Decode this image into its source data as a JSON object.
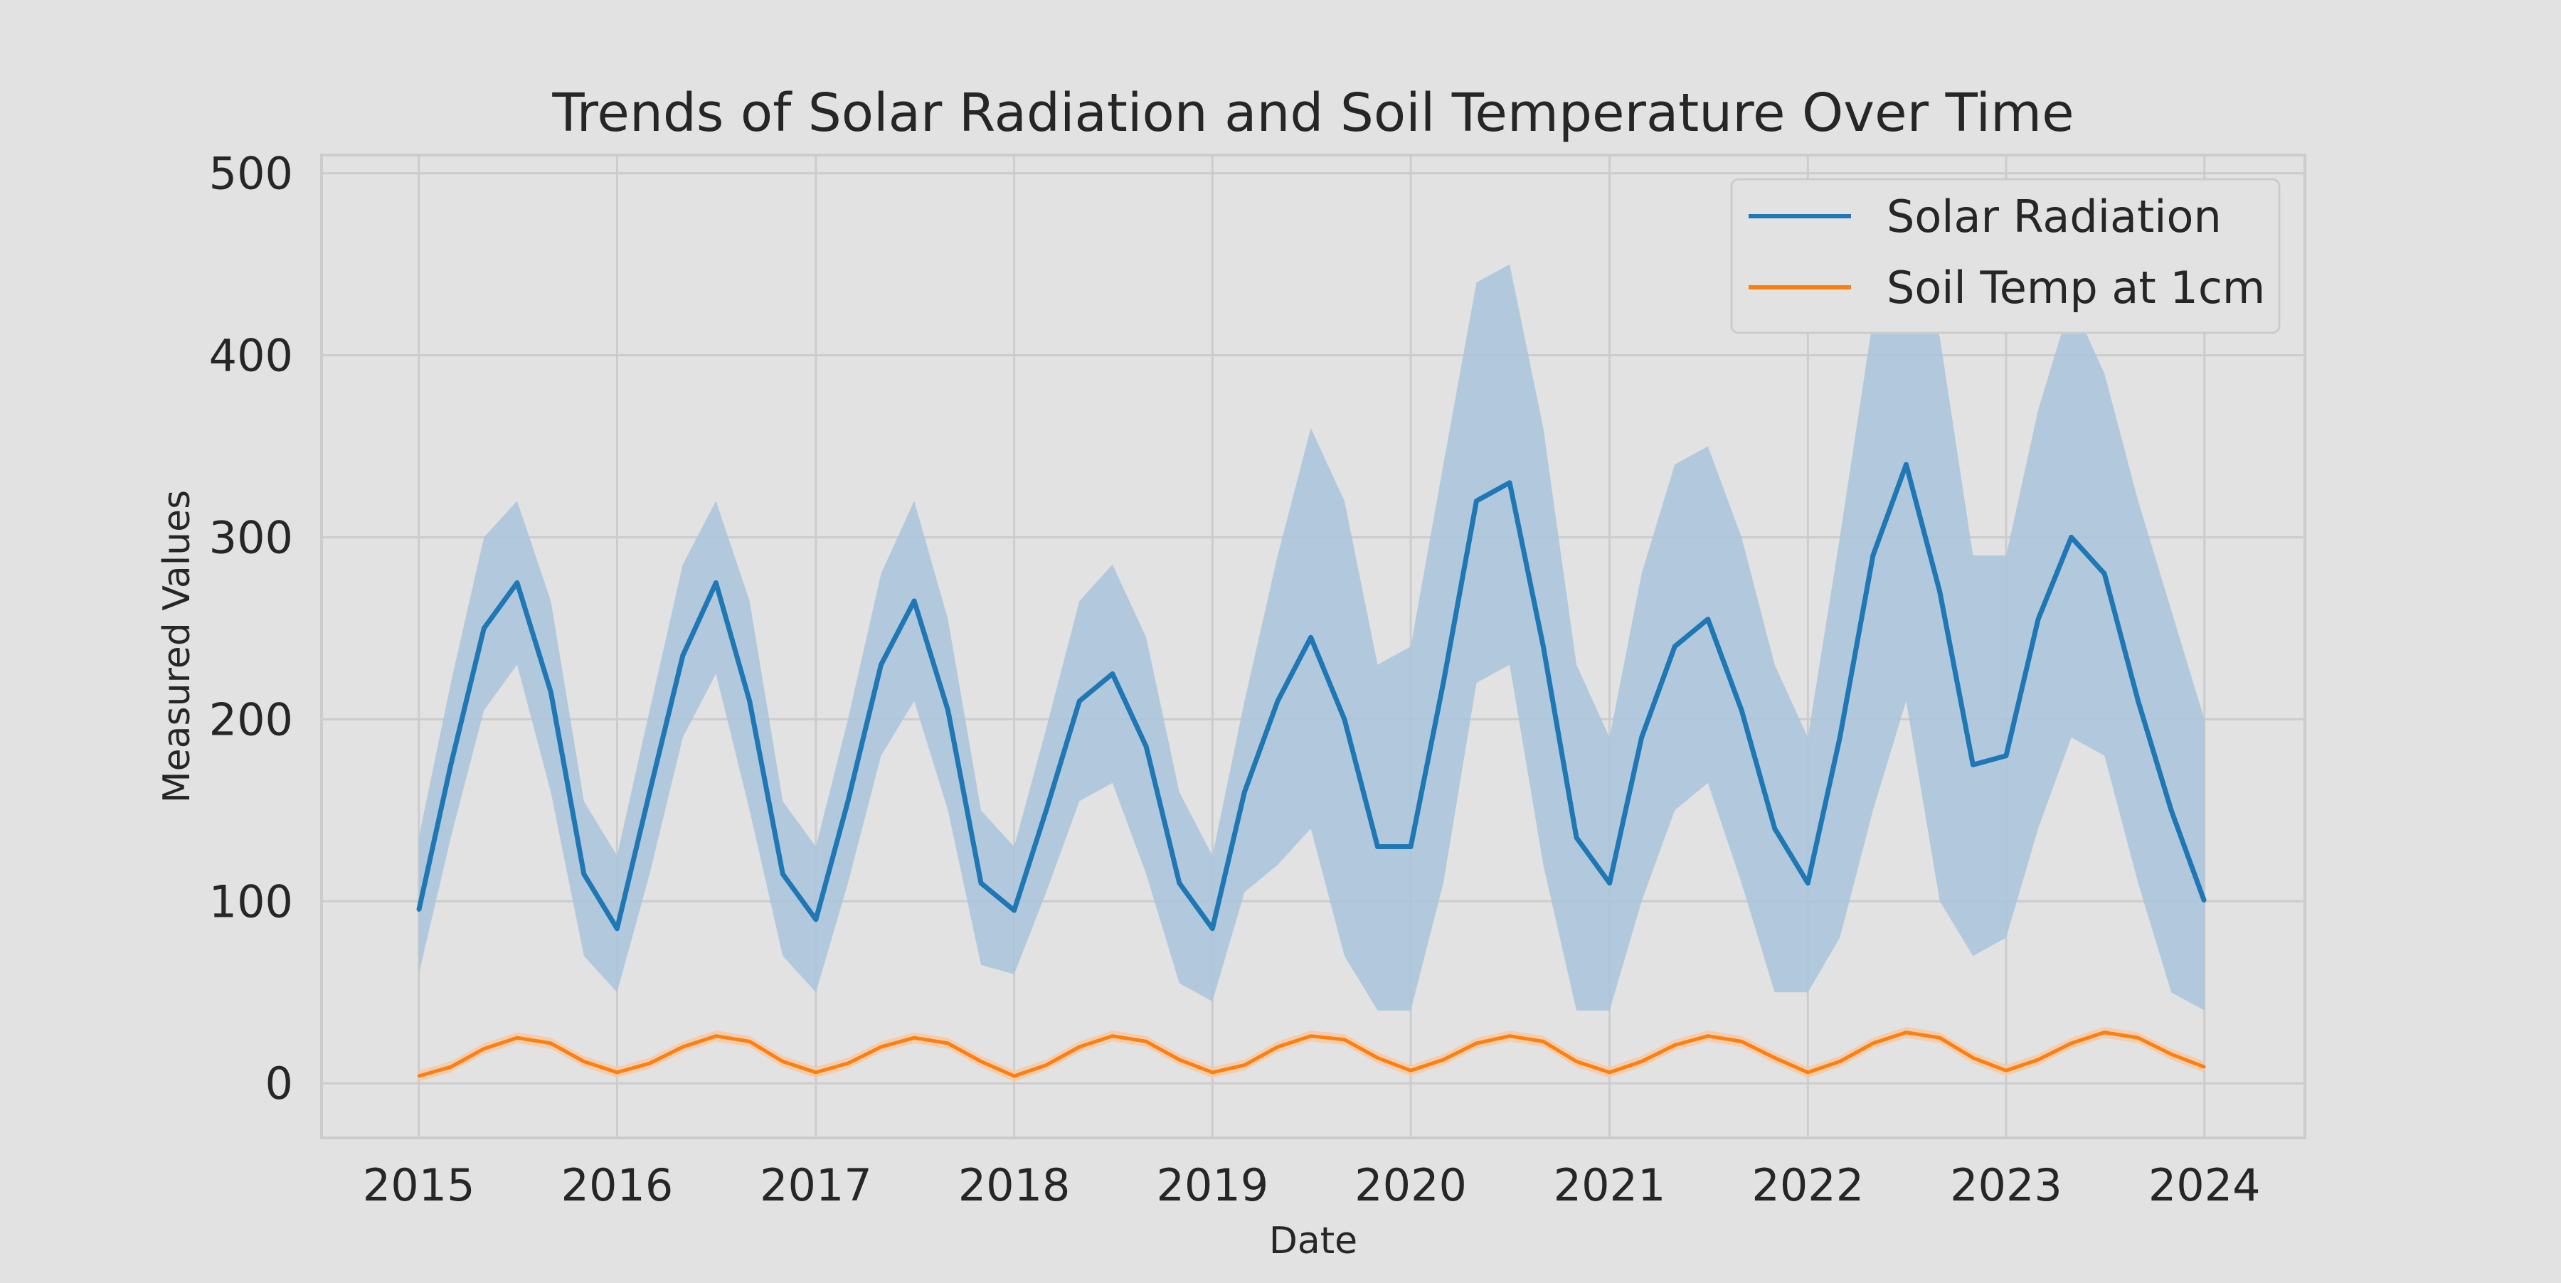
{
  "chart_data": {
    "type": "line",
    "title": "Trends of Solar Radiation and Soil Temperature Over Time",
    "xlabel": "Date",
    "ylabel": "Measured Values",
    "xlim": [
      "2014-07-06",
      "2024-07-04"
    ],
    "ylim": [
      -30,
      510
    ],
    "x_ticks": [
      "2015",
      "2016",
      "2017",
      "2018",
      "2019",
      "2020",
      "2021",
      "2022",
      "2023",
      "2024"
    ],
    "y_ticks": [
      0,
      100,
      200,
      300,
      400,
      500
    ],
    "grid": true,
    "legend_position": "top-right",
    "x_unit": "date",
    "series": [
      {
        "name": "Solar Radiation",
        "color": "#1f77b4",
        "band_color": "#a9c4dc",
        "x": [
          "2015-01-01",
          "2015-03-01",
          "2015-05-01",
          "2015-07-01",
          "2015-09-01",
          "2015-11-01",
          "2016-01-01",
          "2016-03-01",
          "2016-05-01",
          "2016-07-01",
          "2016-09-01",
          "2016-11-01",
          "2017-01-01",
          "2017-03-01",
          "2017-05-01",
          "2017-07-01",
          "2017-09-01",
          "2017-11-01",
          "2018-01-01",
          "2018-03-01",
          "2018-05-01",
          "2018-07-01",
          "2018-09-01",
          "2018-11-01",
          "2019-01-01",
          "2019-03-01",
          "2019-05-01",
          "2019-07-01",
          "2019-09-01",
          "2019-11-01",
          "2020-01-01",
          "2020-03-01",
          "2020-05-01",
          "2020-07-01",
          "2020-09-01",
          "2020-11-01",
          "2021-01-01",
          "2021-03-01",
          "2021-05-01",
          "2021-07-01",
          "2021-09-01",
          "2021-11-01",
          "2022-01-01",
          "2022-03-01",
          "2022-05-01",
          "2022-07-01",
          "2022-09-01",
          "2022-11-01",
          "2023-01-01",
          "2023-03-01",
          "2023-05-01",
          "2023-07-01",
          "2023-09-01",
          "2023-11-01",
          "2024-01-01"
        ],
        "y": [
          95,
          175,
          250,
          275,
          215,
          115,
          85,
          160,
          235,
          275,
          210,
          115,
          90,
          155,
          230,
          265,
          205,
          110,
          95,
          150,
          210,
          225,
          185,
          110,
          85,
          160,
          210,
          245,
          200,
          130,
          130,
          220,
          320,
          330,
          240,
          135,
          110,
          190,
          240,
          255,
          205,
          140,
          110,
          190,
          290,
          340,
          270,
          175,
          180,
          255,
          300,
          280,
          210,
          150,
          100
        ],
        "band_lower": [
          60,
          135,
          205,
          230,
          160,
          70,
          50,
          115,
          190,
          225,
          150,
          70,
          50,
          110,
          180,
          210,
          150,
          65,
          60,
          105,
          155,
          165,
          115,
          55,
          45,
          105,
          120,
          140,
          70,
          40,
          40,
          110,
          220,
          230,
          120,
          40,
          40,
          100,
          150,
          165,
          110,
          50,
          50,
          80,
          150,
          210,
          100,
          70,
          80,
          140,
          190,
          180,
          110,
          50,
          40
        ],
        "band_upper": [
          135,
          220,
          300,
          320,
          265,
          155,
          125,
          205,
          285,
          320,
          265,
          155,
          130,
          200,
          280,
          320,
          255,
          150,
          130,
          195,
          265,
          285,
          245,
          160,
          125,
          210,
          290,
          360,
          320,
          230,
          240,
          340,
          440,
          450,
          360,
          230,
          190,
          280,
          340,
          350,
          300,
          230,
          190,
          300,
          420,
          470,
          410,
          290,
          290,
          370,
          430,
          390,
          320,
          260,
          200
        ]
      },
      {
        "name": "Soil Temp at 1cm",
        "color": "#ff7f0e",
        "band_color": "#f5c9a6",
        "x": [
          "2015-01-01",
          "2015-03-01",
          "2015-05-01",
          "2015-07-01",
          "2015-09-01",
          "2015-11-01",
          "2016-01-01",
          "2016-03-01",
          "2016-05-01",
          "2016-07-01",
          "2016-09-01",
          "2016-11-01",
          "2017-01-01",
          "2017-03-01",
          "2017-05-01",
          "2017-07-01",
          "2017-09-01",
          "2017-11-01",
          "2018-01-01",
          "2018-03-01",
          "2018-05-01",
          "2018-07-01",
          "2018-09-01",
          "2018-11-01",
          "2019-01-01",
          "2019-03-01",
          "2019-05-01",
          "2019-07-01",
          "2019-09-01",
          "2019-11-01",
          "2020-01-01",
          "2020-03-01",
          "2020-05-01",
          "2020-07-01",
          "2020-09-01",
          "2020-11-01",
          "2021-01-01",
          "2021-03-01",
          "2021-05-01",
          "2021-07-01",
          "2021-09-01",
          "2021-11-01",
          "2022-01-01",
          "2022-03-01",
          "2022-05-01",
          "2022-07-01",
          "2022-09-01",
          "2022-11-01",
          "2023-01-01",
          "2023-03-01",
          "2023-05-01",
          "2023-07-01",
          "2023-09-01",
          "2023-11-01",
          "2024-01-01"
        ],
        "y": [
          4,
          9,
          19,
          25,
          22,
          12,
          6,
          11,
          20,
          26,
          23,
          12,
          6,
          11,
          20,
          25,
          22,
          12,
          4,
          10,
          20,
          26,
          23,
          13,
          6,
          10,
          20,
          26,
          24,
          14,
          7,
          13,
          22,
          26,
          23,
          12,
          6,
          12,
          21,
          26,
          23,
          14,
          6,
          12,
          22,
          28,
          25,
          14,
          7,
          13,
          22,
          28,
          25,
          16,
          9
        ],
        "band_lower": [
          1,
          6,
          16,
          22,
          19,
          9,
          3,
          8,
          17,
          23,
          20,
          9,
          3,
          8,
          17,
          22,
          19,
          9,
          1,
          7,
          17,
          23,
          20,
          10,
          3,
          7,
          17,
          23,
          21,
          11,
          4,
          10,
          19,
          23,
          20,
          9,
          3,
          9,
          18,
          23,
          20,
          11,
          3,
          9,
          19,
          25,
          22,
          11,
          4,
          10,
          19,
          25,
          22,
          13,
          6
        ],
        "band_upper": [
          7,
          12,
          22,
          28,
          25,
          15,
          9,
          14,
          23,
          29,
          26,
          15,
          9,
          14,
          23,
          28,
          25,
          15,
          7,
          13,
          23,
          29,
          26,
          16,
          9,
          13,
          23,
          29,
          27,
          17,
          10,
          16,
          25,
          29,
          26,
          15,
          9,
          15,
          24,
          29,
          26,
          17,
          9,
          15,
          25,
          31,
          28,
          17,
          10,
          16,
          25,
          31,
          28,
          19,
          12
        ]
      }
    ]
  }
}
